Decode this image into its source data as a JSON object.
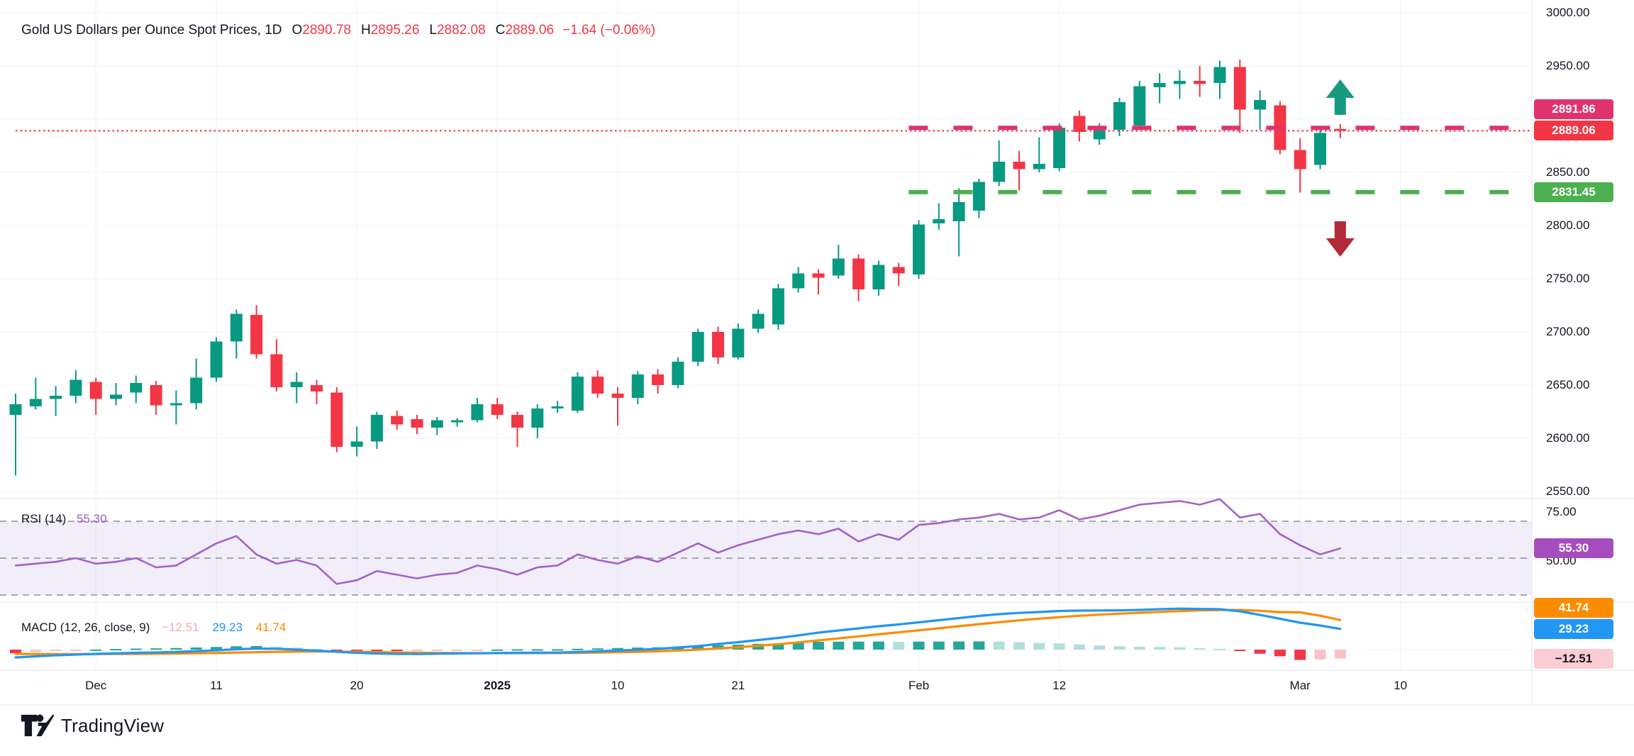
{
  "colors": {
    "up": "#089981",
    "down": "#f23645",
    "grid": "#f0f3fa",
    "separator": "#e0e3eb",
    "text": "#131722",
    "pink_level": "#e0326e",
    "last_price": "#f23645",
    "green_level": "#4caf50",
    "rsi_line": "#a362c9",
    "rsi_badge": "#a64dbe",
    "rsi_band_fill": "#7e57c2",
    "rsi_dash": "#8a8e99",
    "macd_line": "#2196f3",
    "signal_line": "#fb8c00",
    "hist_pos_rising": "#26a69a",
    "hist_pos_falling": "#b2dfdb",
    "hist_neg_falling": "#f23645",
    "hist_neg_rising": "#f9c2c7",
    "badge_hist_bg": "#fbccd2",
    "badge_hist_text": "#131722",
    "arrow_up": "#169a80",
    "arrow_down": "#b2293a"
  },
  "legend": {
    "title": "Gold US Dollars per Ounce Spot Prices, 1D",
    "o_label": "O",
    "o_value": "2890.78",
    "h_label": "H",
    "h_value": "2895.26",
    "l_label": "L",
    "l_value": "2882.08",
    "c_label": "C",
    "c_value": "2889.06",
    "change": "−1.64 (−0.06%)"
  },
  "attribution": {
    "brand": "TradingView"
  },
  "chart_data": {
    "type": "candlestick",
    "title": "Gold US Dollars per Ounce Spot Prices",
    "interval": "1D",
    "last_ohlc": {
      "open": 2890.78,
      "high": 2895.26,
      "low": 2882.08,
      "close": 2889.06,
      "change": -1.64,
      "change_pct": "-0.06%"
    },
    "price_axis": {
      "ticks": [
        {
          "label": "3000.00",
          "value": 3000
        },
        {
          "label": "2950.00",
          "value": 2950
        },
        {
          "label": "2850.00",
          "value": 2850
        },
        {
          "label": "2800.00",
          "value": 2800
        },
        {
          "label": "2750.00",
          "value": 2750
        },
        {
          "label": "2700.00",
          "value": 2700
        },
        {
          "label": "2650.00",
          "value": 2650
        },
        {
          "label": "2600.00",
          "value": 2600
        },
        {
          "label": "2550.00",
          "value": 2550
        }
      ],
      "grid_values": [
        3000,
        2950,
        2900,
        2850,
        2800,
        2750,
        2700,
        2650,
        2600,
        2550
      ]
    },
    "time_labels": [
      {
        "label": "Dec",
        "index": 4,
        "bold": false
      },
      {
        "label": "11",
        "index": 10,
        "bold": false
      },
      {
        "label": "20",
        "index": 17,
        "bold": false
      },
      {
        "label": "2025",
        "index": 24,
        "bold": true
      },
      {
        "label": "10",
        "index": 30,
        "bold": false
      },
      {
        "label": "21",
        "index": 36,
        "bold": false
      },
      {
        "label": "Feb",
        "index": 45,
        "bold": false
      },
      {
        "label": "12",
        "index": 52,
        "bold": false
      },
      {
        "label": "Mar",
        "index": 64,
        "bold": false
      },
      {
        "label": "10",
        "index": 69,
        "bold": false
      }
    ],
    "levels": [
      {
        "label": "2891.86",
        "value": 2891.86,
        "color": "#e0326e",
        "style": "dashed",
        "from_index": 44.5,
        "badge_text_color": "#ffffff"
      },
      {
        "label": "2889.06",
        "value": 2889.06,
        "color": "#f23645",
        "style": "dotted",
        "from_index": 0,
        "badge_text_color": "#ffffff"
      },
      {
        "label": "2831.45",
        "value": 2831.45,
        "color": "#4caf50",
        "style": "dashed",
        "from_index": 44.5,
        "badge_text_color": "#ffffff"
      }
    ],
    "annotations": [
      {
        "shape": "arrow-up",
        "index": 66,
        "y": 138
      },
      {
        "shape": "arrow-down",
        "index": 66,
        "y": 336
      }
    ],
    "candles": [
      [
        2622,
        2642,
        2565,
        2632
      ],
      [
        2630,
        2657,
        2627,
        2637
      ],
      [
        2637,
        2649,
        2621,
        2640
      ],
      [
        2640,
        2664,
        2633,
        2655
      ],
      [
        2653,
        2657,
        2622,
        2637
      ],
      [
        2637,
        2652,
        2631,
        2641
      ],
      [
        2643,
        2659,
        2633,
        2652
      ],
      [
        2650,
        2654,
        2622,
        2631
      ],
      [
        2631,
        2645,
        2613,
        2633
      ],
      [
        2633,
        2675,
        2627,
        2657
      ],
      [
        2657,
        2695,
        2653,
        2691
      ],
      [
        2691,
        2721,
        2675,
        2717
      ],
      [
        2716,
        2725,
        2675,
        2679
      ],
      [
        2679,
        2693,
        2644,
        2648
      ],
      [
        2648,
        2662,
        2633,
        2653
      ],
      [
        2650,
        2655,
        2632,
        2644
      ],
      [
        2643,
        2648,
        2587,
        2592
      ],
      [
        2592,
        2611,
        2583,
        2597
      ],
      [
        2597,
        2625,
        2590,
        2622
      ],
      [
        2621,
        2626,
        2608,
        2613
      ],
      [
        2618,
        2622,
        2604,
        2610
      ],
      [
        2610,
        2620,
        2603,
        2617
      ],
      [
        2615,
        2619,
        2611,
        2617
      ],
      [
        2617,
        2638,
        2615,
        2632
      ],
      [
        2632,
        2638,
        2618,
        2622
      ],
      [
        2622,
        2625,
        2592,
        2610
      ],
      [
        2610,
        2632,
        2600,
        2628
      ],
      [
        2628,
        2635,
        2624,
        2630
      ],
      [
        2626,
        2662,
        2624,
        2658
      ],
      [
        2658,
        2664,
        2638,
        2642
      ],
      [
        2642,
        2648,
        2612,
        2638
      ],
      [
        2638,
        2663,
        2632,
        2660
      ],
      [
        2660,
        2665,
        2642,
        2650
      ],
      [
        2650,
        2676,
        2647,
        2672
      ],
      [
        2672,
        2703,
        2668,
        2700
      ],
      [
        2700,
        2705,
        2670,
        2676
      ],
      [
        2676,
        2708,
        2674,
        2703
      ],
      [
        2703,
        2721,
        2699,
        2717
      ],
      [
        2707,
        2745,
        2702,
        2741
      ],
      [
        2741,
        2761,
        2737,
        2755
      ],
      [
        2755,
        2759,
        2735,
        2751
      ],
      [
        2753,
        2782,
        2750,
        2769
      ],
      [
        2769,
        2773,
        2729,
        2740
      ],
      [
        2740,
        2767,
        2734,
        2763
      ],
      [
        2761,
        2765,
        2743,
        2755
      ],
      [
        2754,
        2805,
        2750,
        2801
      ],
      [
        2802,
        2821,
        2796,
        2806
      ],
      [
        2804,
        2835,
        2771,
        2822
      ],
      [
        2814,
        2844,
        2807,
        2841
      ],
      [
        2841,
        2880,
        2837,
        2860
      ],
      [
        2860,
        2870,
        2833,
        2853
      ],
      [
        2853,
        2883,
        2850,
        2858
      ],
      [
        2854,
        2896,
        2851,
        2892
      ],
      [
        2903,
        2908,
        2879,
        2888
      ],
      [
        2881,
        2896,
        2876,
        2892
      ],
      [
        2890,
        2920,
        2884,
        2916
      ],
      [
        2894,
        2936,
        2890,
        2931
      ],
      [
        2930,
        2943,
        2915,
        2934
      ],
      [
        2933,
        2946,
        2919,
        2936
      ],
      [
        2936,
        2950,
        2921,
        2933
      ],
      [
        2934,
        2955,
        2919,
        2949
      ],
      [
        2949,
        2956,
        2887,
        2909
      ],
      [
        2909,
        2927,
        2890,
        2918
      ],
      [
        2913,
        2917,
        2867,
        2871
      ],
      [
        2871,
        2882,
        2831,
        2853
      ],
      [
        2857,
        2891,
        2853,
        2887
      ],
      [
        2890.78,
        2895.26,
        2882.08,
        2889.06
      ]
    ],
    "rsi": {
      "name": "RSI",
      "params": "(14)",
      "value_label": "55.30",
      "value": 55.3,
      "bands": [
        70,
        50,
        30
      ],
      "axis_ticks": [
        {
          "label": "75.00",
          "value": 75
        },
        {
          "label": "50.00",
          "value": 50
        }
      ],
      "series": [
        46,
        47,
        48,
        50,
        47,
        48,
        50,
        45,
        46,
        52,
        58,
        62,
        52,
        47,
        49,
        46,
        36,
        38,
        43,
        41,
        39,
        41,
        42,
        46,
        44,
        41,
        45,
        46,
        52,
        49,
        47,
        51,
        48,
        53,
        58,
        53,
        57,
        60,
        63,
        65,
        63,
        66,
        59,
        63,
        60,
        68,
        69,
        71,
        72,
        74,
        71,
        72,
        76,
        71,
        73,
        76,
        79,
        80,
        81,
        79,
        82,
        72,
        74,
        63,
        57,
        52,
        55.3
      ]
    },
    "macd": {
      "name": "MACD",
      "params": "(12, 26, close, 9)",
      "hist_label": "−12.51",
      "macd_label": "29.23",
      "signal_label": "41.74",
      "hist_value": -12.51,
      "macd_value": 29.23,
      "signal_value": 41.74,
      "macd_series": [
        -11,
        -9.5,
        -8,
        -7,
        -6,
        -5.2,
        -4.5,
        -4,
        -3.2,
        -2.2,
        -1,
        0.5,
        1.5,
        1.2,
        0,
        -1.5,
        -3,
        -4.5,
        -5.5,
        -6,
        -6.2,
        -5.8,
        -5.4,
        -5.2,
        -4.8,
        -4.5,
        -4.4,
        -4.2,
        -3.4,
        -2.4,
        -1.4,
        -0.2,
        1,
        3,
        5,
        8,
        10.5,
        13.5,
        16.5,
        20,
        24,
        27,
        30,
        33,
        35.5,
        38.5,
        41.5,
        44.5,
        47.5,
        50,
        51.8,
        53,
        54.5,
        55,
        55.2,
        55.4,
        56,
        57,
        57.8,
        57.4,
        57,
        54,
        49,
        43.5,
        38,
        34,
        29.23
      ],
      "signal_series": [
        -6,
        -6.2,
        -6.3,
        -6.3,
        -6.2,
        -6.1,
        -6,
        -5.8,
        -5.5,
        -5.2,
        -4.8,
        -4.2,
        -3.6,
        -3.1,
        -2.8,
        -2.7,
        -2.8,
        -3.1,
        -3.5,
        -4,
        -4.4,
        -4.7,
        -4.9,
        -5,
        -5,
        -5,
        -4.9,
        -4.8,
        -4.6,
        -4.2,
        -3.7,
        -3.1,
        -2.3,
        -1.3,
        0,
        1.6,
        3.4,
        5.4,
        7.7,
        10.2,
        13,
        15.8,
        18.7,
        21.6,
        24.4,
        27.2,
        30.1,
        33,
        35.9,
        38.7,
        41.3,
        43.6,
        45.8,
        47.7,
        49.3,
        50.7,
        52,
        53.2,
        54.4,
        55.3,
        55.9,
        55.9,
        54.8,
        52.9,
        52.5,
        47.8,
        41.74
      ]
    }
  }
}
